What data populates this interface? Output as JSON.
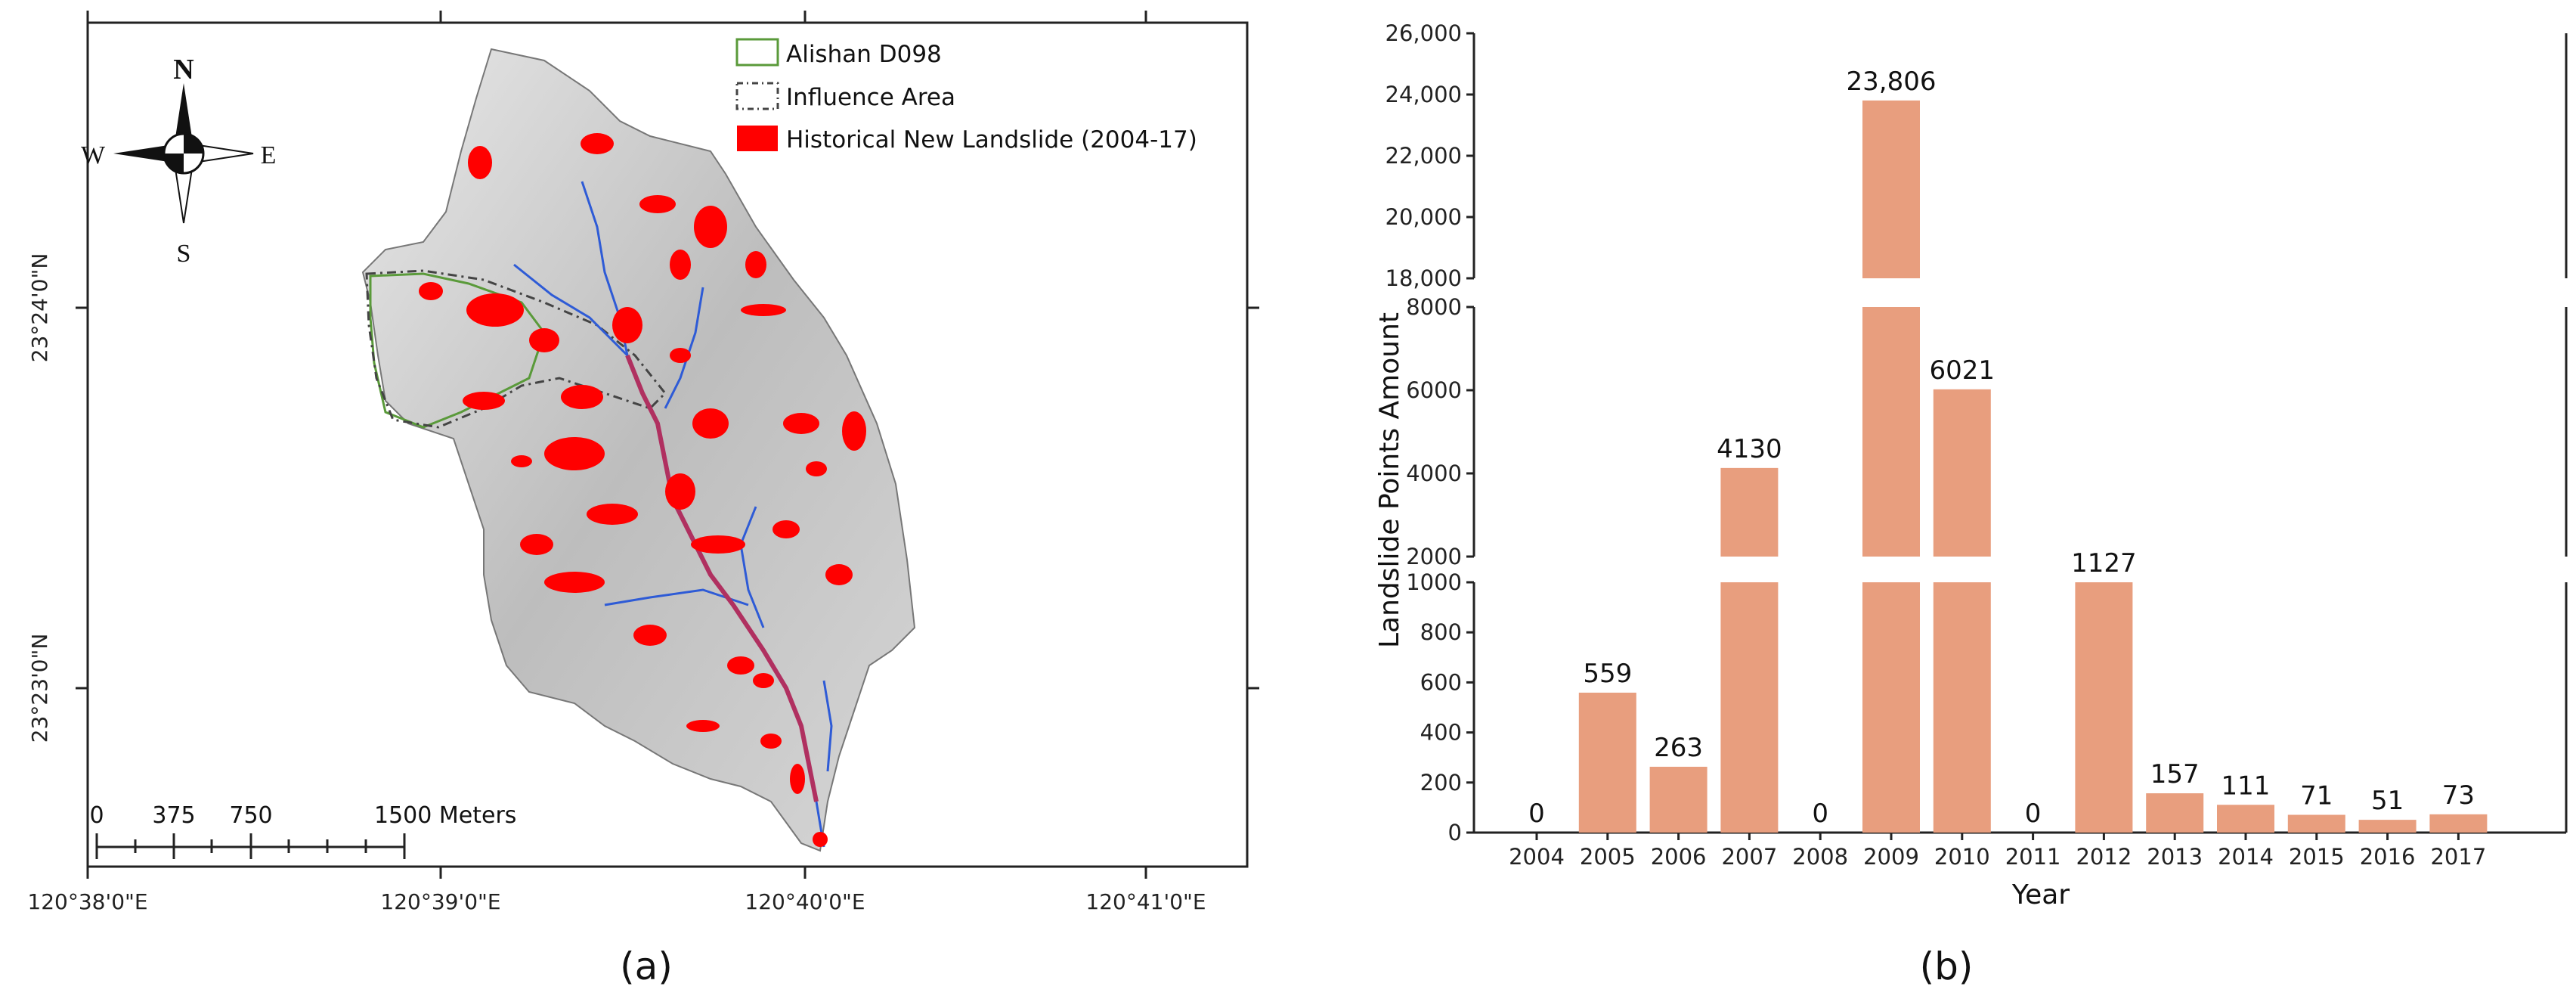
{
  "map": {
    "legend": {
      "alishan": "Alishan D098",
      "influence": "Influence Area",
      "landslide": "Historical New Landslide (2004-17)"
    },
    "compass": {
      "n": "N",
      "s": "S",
      "e": "E",
      "w": "W"
    },
    "lat_labels": [
      "23°24'0\"N",
      "23°23'0\"N"
    ],
    "lon_labels": [
      "120°38'0\"E",
      "120°39'0\"E",
      "120°40'0\"E",
      "120°41'0\"E"
    ],
    "scale": {
      "t0": "0",
      "t1": "375",
      "t2": "750",
      "t3": "1500 Meters"
    },
    "colors": {
      "landslide": "#ff0000",
      "river": "#2e5bd6",
      "boundary": "#5a9a3a"
    }
  },
  "captions": {
    "a": "(a)",
    "b": "(b)"
  },
  "chart_data": {
    "type": "bar",
    "title": "",
    "xlabel": "Year",
    "ylabel": "Landslide Points Amount",
    "categories": [
      "2004",
      "2005",
      "2006",
      "2007",
      "2008",
      "2009",
      "2010",
      "2011",
      "2012",
      "2013",
      "2014",
      "2015",
      "2016",
      "2017"
    ],
    "values": [
      0,
      559,
      263,
      4130,
      0,
      23806,
      6021,
      0,
      1127,
      157,
      111,
      71,
      51,
      73
    ],
    "labels": [
      "0",
      "559",
      "263",
      "4130",
      "0",
      "23,806",
      "6021",
      "0",
      "1127",
      "157",
      "111",
      "71",
      "51",
      "73"
    ],
    "axis_break": true,
    "segments": [
      {
        "range": [
          0,
          1000
        ],
        "ticks": [
          0,
          200,
          400,
          600,
          800,
          1000
        ],
        "tick_labels": [
          "0",
          "200",
          "400",
          "600",
          "800",
          "1000"
        ]
      },
      {
        "range": [
          2000,
          8000
        ],
        "ticks": [
          2000,
          4000,
          6000,
          8000
        ],
        "tick_labels": [
          "2000",
          "4000",
          "6000",
          "8000"
        ]
      },
      {
        "range": [
          18000,
          26000
        ],
        "ticks": [
          18000,
          20000,
          22000,
          24000,
          26000
        ],
        "tick_labels": [
          "18,000",
          "20,000",
          "22,000",
          "24,000",
          "26,000"
        ]
      }
    ],
    "bar_color": "#e89e7e"
  }
}
